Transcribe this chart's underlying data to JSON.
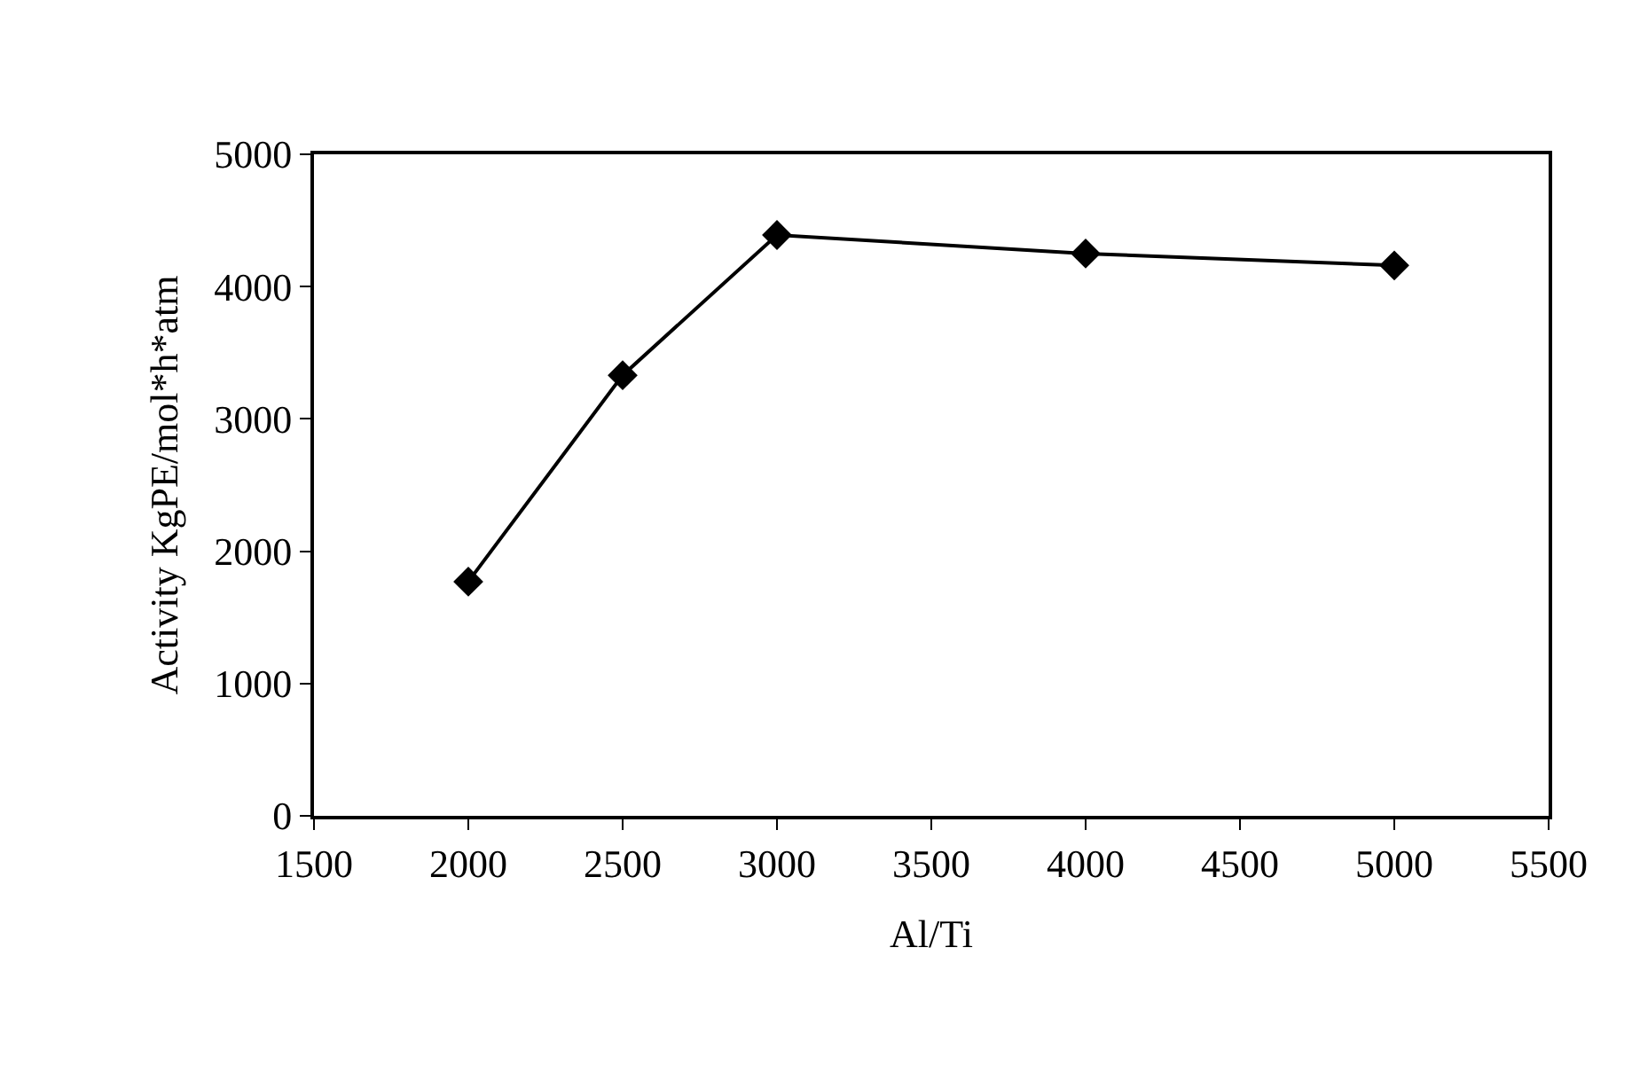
{
  "chart_data": {
    "type": "line",
    "xlabel": "Al/Ti",
    "ylabel": "Activity KgPE/mol*h*atm",
    "x": [
      2000,
      2500,
      3000,
      4000,
      5000
    ],
    "series": [
      {
        "color": "#000000",
        "values": [
          1770,
          3330,
          4390,
          4250,
          4160
        ]
      }
    ],
    "xlim": [
      1500,
      5500
    ],
    "xticks": [
      1500,
      2000,
      2500,
      3000,
      3500,
      4000,
      4500,
      5000,
      5500
    ],
    "ylim": [
      0,
      5000
    ],
    "yticks": [
      0,
      1000,
      2000,
      3000,
      4000,
      5000
    ],
    "grid": false,
    "marker": "diamond",
    "line_style": "solid"
  }
}
